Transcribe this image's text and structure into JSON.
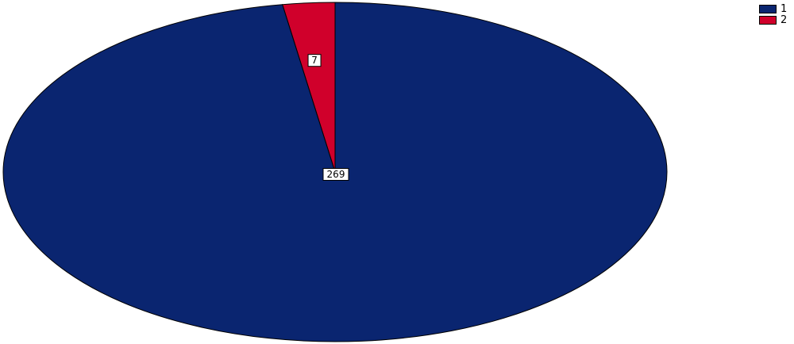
{
  "chart_data": {
    "type": "pie",
    "categories": [
      "1",
      "2"
    ],
    "values": [
      269,
      7
    ],
    "data_labels": [
      "269",
      "7"
    ],
    "colors": [
      "#0a2570",
      "#d0002b"
    ],
    "legend": {
      "placement": "top-right",
      "entries": [
        "1",
        "2"
      ]
    }
  }
}
